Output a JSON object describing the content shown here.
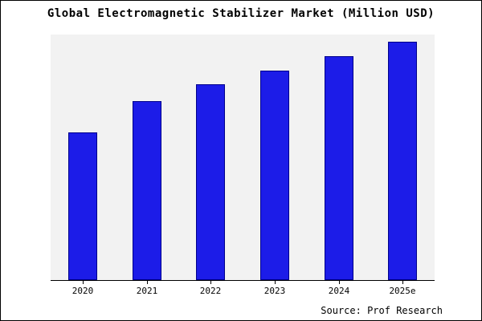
{
  "chart_data": {
    "type": "bar",
    "title": "Global Electromagnetic Stabilizer Market (Million USD)",
    "categories": [
      "2020",
      "2021",
      "2022",
      "2023",
      "2024",
      "2025e"
    ],
    "values": [
      62,
      75,
      82,
      88,
      94,
      100
    ],
    "xlabel": "",
    "ylabel": "",
    "ylim": [
      0,
      103
    ],
    "grid": false,
    "legend": "none",
    "bar_fill_color": "#1c1ce8",
    "bar_edge_color": "#00008b",
    "plot_bg_color": "#f2f2f2",
    "outer_border_color": "#000000"
  },
  "source_note": "Source: Prof Research"
}
